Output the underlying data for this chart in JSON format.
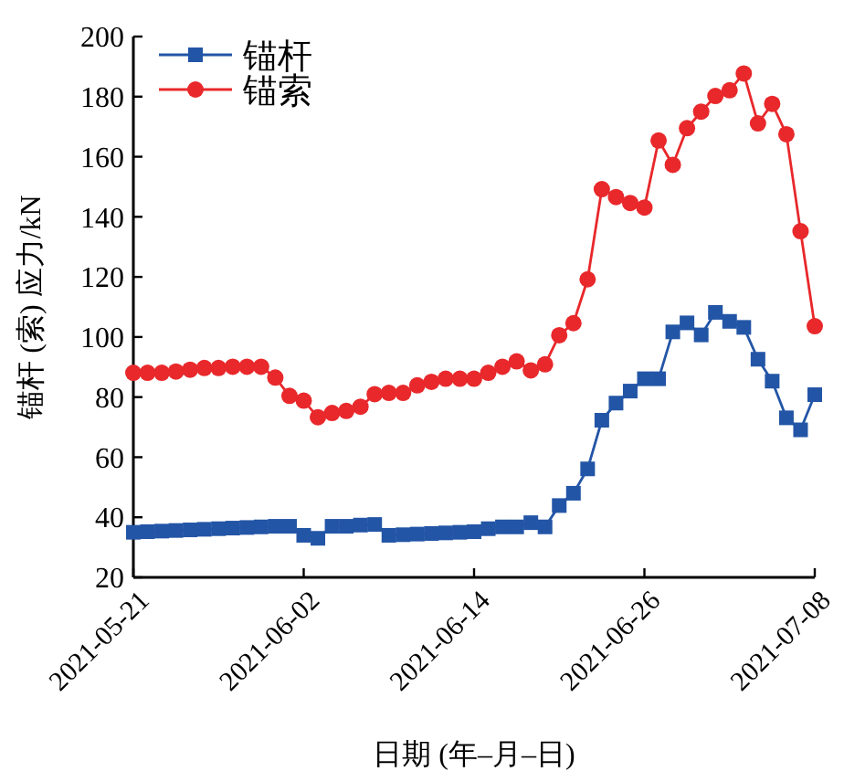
{
  "chart_data": {
    "type": "line",
    "xlabel": "日期 (年–月–日)",
    "ylabel": "锚杆 (索) 应力/kN",
    "x": [
      "2021-05-21",
      "2021-05-22",
      "2021-05-23",
      "2021-05-24",
      "2021-05-25",
      "2021-05-26",
      "2021-05-27",
      "2021-05-28",
      "2021-05-29",
      "2021-05-30",
      "2021-05-31",
      "2021-06-01",
      "2021-06-02",
      "2021-06-03",
      "2021-06-04",
      "2021-06-05",
      "2021-06-06",
      "2021-06-07",
      "2021-06-08",
      "2021-06-09",
      "2021-06-10",
      "2021-06-11",
      "2021-06-12",
      "2021-06-13",
      "2021-06-14",
      "2021-06-15",
      "2021-06-16",
      "2021-06-17",
      "2021-06-18",
      "2021-06-19",
      "2021-06-20",
      "2021-06-21",
      "2021-06-22",
      "2021-06-23",
      "2021-06-24",
      "2021-06-25",
      "2021-06-26",
      "2021-06-27",
      "2021-06-28",
      "2021-06-29",
      "2021-06-30",
      "2021-07-01",
      "2021-07-02",
      "2021-07-03",
      "2021-07-04",
      "2021-07-05",
      "2021-07-06",
      "2021-07-07",
      "2021-07-08"
    ],
    "series": [
      {
        "name": "锚杆",
        "color": "#2355a6",
        "marker": "square",
        "values": [
          35,
          35.2,
          35.4,
          35.6,
          35.8,
          36,
          36.2,
          36.4,
          36.6,
          36.8,
          37,
          37,
          34,
          33,
          37,
          37,
          37.4,
          37.6,
          34,
          34.2,
          34.4,
          34.6,
          34.8,
          35,
          35.2,
          36.2,
          36.8,
          36.8,
          38.2,
          36.8,
          43.9,
          48,
          56.1,
          72.3,
          78,
          82,
          86.1,
          86.1,
          101.7,
          104.7,
          100.7,
          108.2,
          105.2,
          103.2,
          92.6,
          85.3,
          73.1,
          69.1,
          80.8
        ]
      },
      {
        "name": "锚索",
        "color": "#e8282b",
        "marker": "circle",
        "values": [
          88.1,
          88.1,
          88.1,
          88.5,
          89.1,
          89.7,
          89.7,
          90.1,
          90.1,
          90.1,
          86.5,
          80.4,
          78.8,
          73.3,
          74.7,
          75.4,
          76.8,
          81,
          81.4,
          81.4,
          83.9,
          85.1,
          86.1,
          86.1,
          86.1,
          88.1,
          90.1,
          91.9,
          88.9,
          90.9,
          100.6,
          104.6,
          119.2,
          149.2,
          146.6,
          144.6,
          143.1,
          165.4,
          157.3,
          169.5,
          175,
          180.2,
          182.1,
          187.7,
          171.1,
          177.6,
          167.5,
          135.2,
          103.6
        ]
      }
    ],
    "xlim": [
      "2021-05-21",
      "2021-07-08"
    ],
    "xticks": [
      "2021-05-21",
      "2021-06-02",
      "2021-06-14",
      "2021-06-26",
      "2021-07-08"
    ],
    "ylim": [
      20,
      200
    ],
    "yticks": [
      20,
      40,
      60,
      80,
      100,
      120,
      140,
      160,
      180,
      200
    ],
    "legend": "top left",
    "grid": false
  }
}
